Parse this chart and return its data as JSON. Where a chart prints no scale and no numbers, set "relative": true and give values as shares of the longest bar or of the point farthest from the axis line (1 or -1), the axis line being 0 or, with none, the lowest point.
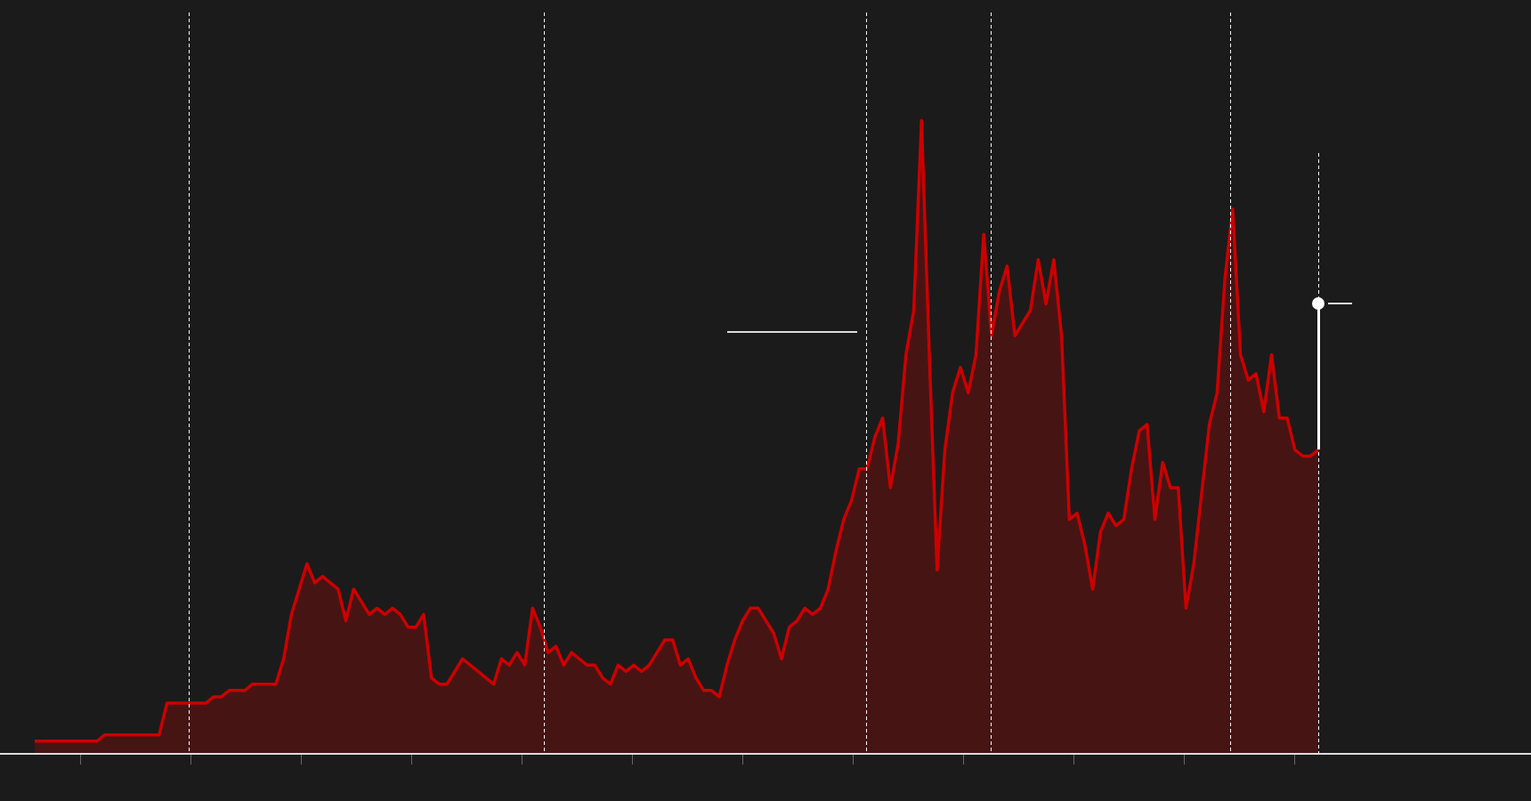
{
  "chart_data": {
    "type": "area",
    "relative": true,
    "legend": false,
    "categories": [
      null,
      null,
      null,
      null,
      null,
      null,
      null,
      null,
      null,
      null,
      null,
      null,
      null,
      null,
      null,
      null,
      null,
      null,
      null,
      null,
      null,
      null,
      null,
      null,
      null,
      null,
      null,
      null,
      null,
      null,
      null,
      null,
      null,
      null,
      null,
      null,
      null,
      null,
      null,
      null,
      null,
      null,
      null,
      null,
      null,
      null,
      null,
      null,
      null,
      null,
      null,
      null,
      null,
      null,
      null,
      null,
      null,
      null,
      null,
      null,
      null,
      null,
      null,
      null,
      null,
      null,
      null,
      null,
      null,
      null,
      null,
      null,
      null,
      null,
      null,
      null,
      null,
      null,
      null,
      null,
      null,
      null,
      null,
      null,
      null,
      null,
      null,
      null,
      null,
      null,
      null,
      null,
      null,
      null,
      null,
      null,
      null,
      null,
      null,
      null,
      null,
      null,
      null,
      null,
      null,
      null,
      null,
      null,
      null,
      null,
      null,
      null,
      null,
      null,
      null,
      null,
      null,
      null,
      null,
      null,
      null,
      null,
      null,
      null,
      null,
      null,
      null,
      null,
      null,
      null,
      null,
      null,
      null,
      null,
      null,
      null,
      null,
      null,
      null,
      null,
      null,
      null,
      null,
      null,
      null,
      null,
      null,
      null,
      null,
      null,
      null,
      null,
      null,
      null,
      null,
      null,
      null,
      null,
      null,
      null,
      null,
      null,
      null,
      null,
      null,
      null
    ],
    "series": [
      {
        "color": "#cc0000",
        "values": [
          0.02,
          0.02,
          0.02,
          0.02,
          0.02,
          0.02,
          0.02,
          0.02,
          0.02,
          0.03,
          0.03,
          0.03,
          0.03,
          0.03,
          0.03,
          0.03,
          0.03,
          0.08,
          0.08,
          0.08,
          0.08,
          0.08,
          0.08,
          0.09,
          0.09,
          0.1,
          0.1,
          0.1,
          0.11,
          0.11,
          0.11,
          0.11,
          0.15,
          0.22,
          0.26,
          0.3,
          0.27,
          0.28,
          0.27,
          0.26,
          0.21,
          0.26,
          0.24,
          0.22,
          0.23,
          0.22,
          0.23,
          0.22,
          0.2,
          0.2,
          0.22,
          0.12,
          0.11,
          0.11,
          0.13,
          0.15,
          0.14,
          0.13,
          0.12,
          0.11,
          0.15,
          0.14,
          0.16,
          0.14,
          0.23,
          0.2,
          0.16,
          0.17,
          0.14,
          0.16,
          0.15,
          0.14,
          0.14,
          0.12,
          0.11,
          0.14,
          0.13,
          0.14,
          0.13,
          0.14,
          0.16,
          0.18,
          0.18,
          0.14,
          0.15,
          0.12,
          0.1,
          0.1,
          0.09,
          0.14,
          0.18,
          0.21,
          0.23,
          0.23,
          0.21,
          0.19,
          0.15,
          0.2,
          0.21,
          0.23,
          0.22,
          0.23,
          0.26,
          0.32,
          0.37,
          0.4,
          0.45,
          0.45,
          0.5,
          0.53,
          0.42,
          0.49,
          0.63,
          0.7,
          1.0,
          0.63,
          0.29,
          0.48,
          0.57,
          0.61,
          0.57,
          0.63,
          0.82,
          0.66,
          0.73,
          0.77,
          0.66,
          0.68,
          0.7,
          0.78,
          0.71,
          0.78,
          0.66,
          0.37,
          0.38,
          0.33,
          0.26,
          0.35,
          0.38,
          0.36,
          0.37,
          0.45,
          0.51,
          0.52,
          0.37,
          0.46,
          0.42,
          0.42,
          0.23,
          0.3,
          0.41,
          0.52,
          0.57,
          0.75,
          0.86,
          0.63,
          0.59,
          0.6,
          0.54,
          0.63,
          0.53,
          0.53,
          0.48,
          0.47,
          0.47,
          0.48
        ]
      }
    ]
  }
}
